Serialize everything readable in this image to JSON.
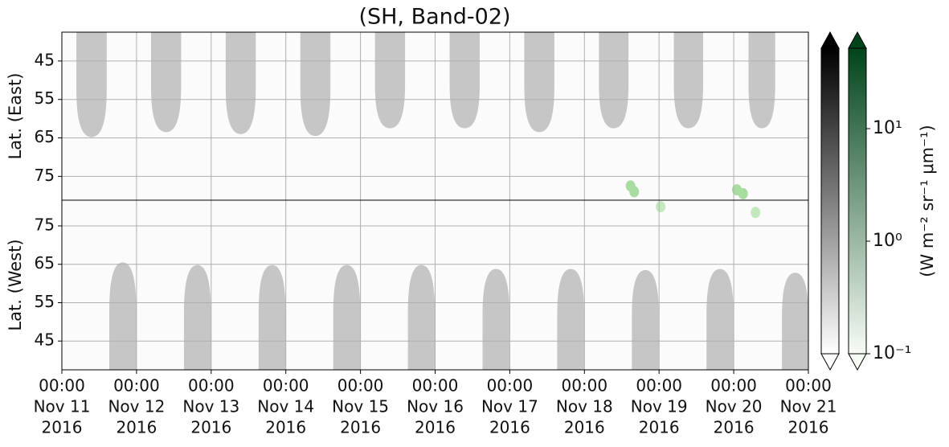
{
  "chart_data": {
    "type": "lobe-panels",
    "title": "(SH, Band-02)",
    "xlim": [
      "2016-11-11T00:00",
      "2016-11-21T00:00"
    ],
    "xticks": [
      {
        "value": "2016-11-11T00:00",
        "label": [
          "00:00",
          "Nov 11",
          "2016"
        ]
      },
      {
        "value": "2016-11-12T00:00",
        "label": [
          "00:00",
          "Nov 12",
          "2016"
        ]
      },
      {
        "value": "2016-11-13T00:00",
        "label": [
          "00:00",
          "Nov 13",
          "2016"
        ]
      },
      {
        "value": "2016-11-14T00:00",
        "label": [
          "00:00",
          "Nov 14",
          "2016"
        ]
      },
      {
        "value": "2016-11-15T00:00",
        "label": [
          "00:00",
          "Nov 15",
          "2016"
        ]
      },
      {
        "value": "2016-11-16T00:00",
        "label": [
          "00:00",
          "Nov 16",
          "2016"
        ]
      },
      {
        "value": "2016-11-17T00:00",
        "label": [
          "00:00",
          "Nov 17",
          "2016"
        ]
      },
      {
        "value": "2016-11-18T00:00",
        "label": [
          "00:00",
          "Nov 18",
          "2016"
        ]
      },
      {
        "value": "2016-11-19T00:00",
        "label": [
          "00:00",
          "Nov 19",
          "2016"
        ]
      },
      {
        "value": "2016-11-20T00:00",
        "label": [
          "00:00",
          "Nov 20",
          "2016"
        ]
      },
      {
        "value": "2016-11-21T00:00",
        "label": [
          "00:00",
          "Nov 21",
          "2016"
        ]
      }
    ],
    "grid": true,
    "panels": [
      {
        "ylabel": "Lat. (East)",
        "ylim": [
          37.5,
          81.2
        ],
        "inverted": true,
        "yticks": [
          45,
          55,
          65,
          75
        ],
        "lobes": {
          "color": "#c6c6c6",
          "start": [
            "2016-11-11T04:40",
            "2016-11-12T04:40",
            "2016-11-13T04:40",
            "2016-11-14T04:40",
            "2016-11-15T04:40",
            "2016-11-16T04:40",
            "2016-11-17T04:40",
            "2016-11-18T04:40",
            "2016-11-19T04:45",
            "2016-11-20T04:45"
          ],
          "end": [
            "2016-11-11T14:25",
            "2016-11-12T14:20",
            "2016-11-13T14:20",
            "2016-11-14T14:20",
            "2016-11-15T14:20",
            "2016-11-16T14:20",
            "2016-11-17T14:20",
            "2016-11-18T14:10",
            "2016-11-19T14:10",
            "2016-11-20T13:20"
          ],
          "values": [
            64.8,
            63.5,
            64,
            64.5,
            62.5,
            62.5,
            63.5,
            62.5,
            62.5,
            62.5
          ]
        },
        "patches": {
          "color": "#a8dca0",
          "x": [
            "2016-11-18T14:50",
            "2016-11-18T16:00",
            "2016-11-20T01:00",
            "2016-11-20T03:00"
          ],
          "values": [
            77.5,
            79,
            78.5,
            79.5
          ]
        }
      },
      {
        "ylabel": "Lat. (West)",
        "ylim": [
          37.5,
          81.7
        ],
        "inverted": false,
        "yticks": [
          45,
          55,
          65,
          75
        ],
        "lobes": {
          "color": "#c6c6c6",
          "start": [
            "2016-11-11T15:15",
            "2016-11-12T15:15",
            "2016-11-13T15:15",
            "2016-11-14T15:15",
            "2016-11-15T15:15",
            "2016-11-16T15:15",
            "2016-11-17T15:15",
            "2016-11-18T15:15",
            "2016-11-19T15:15",
            "2016-11-20T15:30"
          ],
          "end": [
            "2016-11-11T23:55",
            "2016-11-12T23:55",
            "2016-11-13T23:55",
            "2016-11-14T23:55",
            "2016-11-15T23:55",
            "2016-11-16T23:55",
            "2016-11-17T23:55",
            "2016-11-18T23:55",
            "2016-11-19T23:55",
            "2016-11-21T00:00"
          ],
          "values": [
            65.5,
            64.8,
            64.8,
            64.8,
            64.8,
            63.8,
            63.8,
            63.5,
            63.8,
            62.8
          ]
        },
        "patches": {
          "color": "#c4e8bd",
          "x": [
            "2016-11-19T00:30",
            "2016-11-20T07:00"
          ],
          "values": [
            80,
            78.5
          ]
        }
      }
    ],
    "colorbars": [
      {
        "colors": [
          "#ffffff",
          "#000000"
        ]
      },
      {
        "colors": [
          "#f7fcf5",
          "#00441b"
        ]
      }
    ],
    "clim": [
      0.1,
      51.8
    ],
    "log": true,
    "cticks": [
      {
        "value": 0.1,
        "label": "10⁻¹"
      },
      {
        "value": 1,
        "label": "10⁰"
      },
      {
        "value": 10,
        "label": "10¹"
      }
    ],
    "clabel": "(W m⁻² sr⁻¹ μm⁻¹)"
  }
}
